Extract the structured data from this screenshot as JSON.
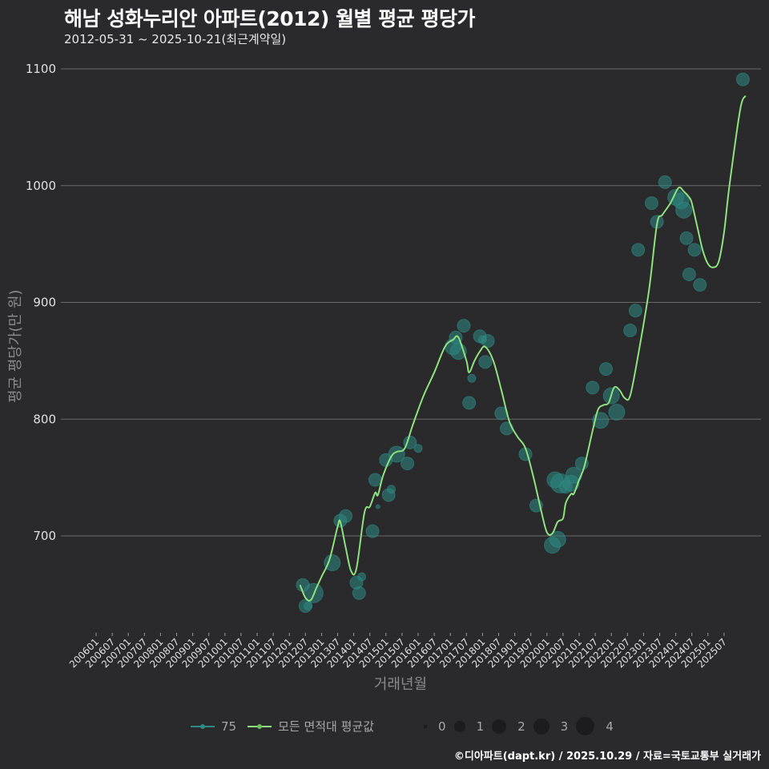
{
  "title": "해남 성화누리안 아파트(2012) 월별 평균 평당가",
  "subtitle": "2012-05-31 ~ 2025-10-21(최근계약일)",
  "footer": "©디아파트(dapt.kr) / 2025.10.29 / 자료=국토교통부 실거래가",
  "colors": {
    "background": "#2a292b",
    "grid": "#6b6b6b",
    "series_75": "#2e8b84",
    "average_line": "#8ee27f",
    "size_legend_dot": "#1c1b1d"
  },
  "legend": {
    "series": [
      {
        "label": "75",
        "color": "#2e8b84"
      },
      {
        "label": "모든 면적대 평균값",
        "color": "#8ee27f"
      }
    ],
    "sizes": [
      "0",
      "1",
      "2",
      "3",
      "4"
    ]
  },
  "chart_data": {
    "type": "line",
    "title": "해남 성화누리안 아파트(2012) 월별 평균 평당가",
    "subtitle": "2012-05-31 ~ 2025-10-21(최근계약일)",
    "xlabel": "거래년월",
    "ylabel": "평균 평당가(만 원)",
    "ylim": [
      620,
      1110
    ],
    "yticks": [
      700,
      800,
      900,
      1000,
      1100
    ],
    "grid": true,
    "legend_position": "bottom",
    "xticks": [
      "200601",
      "200607",
      "200701",
      "200707",
      "200801",
      "200807",
      "200901",
      "200907",
      "201001",
      "201007",
      "201101",
      "201107",
      "201201",
      "201207",
      "201301",
      "201307",
      "201401",
      "201407",
      "201501",
      "201507",
      "201601",
      "201607",
      "201701",
      "201707",
      "201801",
      "201807",
      "201901",
      "201907",
      "202001",
      "202007",
      "202101",
      "202107",
      "202201",
      "202207",
      "202301",
      "202307",
      "202401",
      "202407",
      "202501",
      "202507"
    ],
    "series": [
      {
        "name": "모든 면적대 평균값",
        "type": "line",
        "points": [
          [
            "2012-05",
            658
          ],
          [
            "2012-07",
            647
          ],
          [
            "2012-09",
            645
          ],
          [
            "2012-11",
            655
          ],
          [
            "2013-01",
            665
          ],
          [
            "2013-04",
            680
          ],
          [
            "2013-07",
            708
          ],
          [
            "2013-08",
            712
          ],
          [
            "2013-10",
            690
          ],
          [
            "2013-12",
            670
          ],
          [
            "2014-02",
            672
          ],
          [
            "2014-05",
            720
          ],
          [
            "2014-07",
            725
          ],
          [
            "2014-09",
            737
          ],
          [
            "2014-10",
            735
          ],
          [
            "2014-12",
            752
          ],
          [
            "2015-03",
            768
          ],
          [
            "2015-05",
            772
          ],
          [
            "2015-08",
            775
          ],
          [
            "2015-11",
            795
          ],
          [
            "2016-03",
            820
          ],
          [
            "2016-07",
            840
          ],
          [
            "2016-11",
            862
          ],
          [
            "2017-02",
            868
          ],
          [
            "2017-04",
            870
          ],
          [
            "2017-07",
            850
          ],
          [
            "2017-08",
            840
          ],
          [
            "2017-10",
            850
          ],
          [
            "2017-12",
            858
          ],
          [
            "2018-02",
            862
          ],
          [
            "2018-05",
            850
          ],
          [
            "2018-08",
            825
          ],
          [
            "2018-11",
            798
          ],
          [
            "2019-02",
            785
          ],
          [
            "2019-05",
            775
          ],
          [
            "2019-08",
            750
          ],
          [
            "2019-11",
            720
          ],
          [
            "2020-01",
            703
          ],
          [
            "2020-03",
            702
          ],
          [
            "2020-05",
            712
          ],
          [
            "2020-07",
            715
          ],
          [
            "2020-08",
            728
          ],
          [
            "2020-10",
            736
          ],
          [
            "2020-11",
            736
          ],
          [
            "2021-01",
            748
          ],
          [
            "2021-03",
            760
          ],
          [
            "2021-06",
            790
          ],
          [
            "2021-08",
            808
          ],
          [
            "2021-10",
            812
          ],
          [
            "2021-12",
            814
          ],
          [
            "2022-02",
            827
          ],
          [
            "2022-04",
            825
          ],
          [
            "2022-06",
            818
          ],
          [
            "2022-08",
            820
          ],
          [
            "2022-11",
            855
          ],
          [
            "2023-03",
            910
          ],
          [
            "2023-06",
            967
          ],
          [
            "2023-08",
            975
          ],
          [
            "2023-11",
            985
          ],
          [
            "2024-02",
            998
          ],
          [
            "2024-04",
            995
          ],
          [
            "2024-06",
            990
          ],
          [
            "2024-07",
            985
          ],
          [
            "2024-09",
            965
          ],
          [
            "2024-11",
            945
          ],
          [
            "2025-01",
            933
          ],
          [
            "2025-03",
            930
          ],
          [
            "2025-05",
            935
          ],
          [
            "2025-07",
            960
          ],
          [
            "2025-09",
            1000
          ],
          [
            "2026-01",
            1065
          ],
          [
            "2026-03",
            1077
          ]
        ]
      },
      {
        "name": "75",
        "type": "scatter",
        "points": [
          [
            "2012-06",
            658,
            2
          ],
          [
            "2012-07",
            640,
            2
          ],
          [
            "2012-08",
            640,
            1
          ],
          [
            "2012-10",
            651,
            4
          ],
          [
            "2013-05",
            677,
            3
          ],
          [
            "2013-08",
            713,
            2
          ],
          [
            "2013-10",
            717,
            2
          ],
          [
            "2014-02",
            660,
            2
          ],
          [
            "2014-03",
            651,
            2
          ],
          [
            "2014-04",
            665,
            1
          ],
          [
            "2014-08",
            704,
            2
          ],
          [
            "2014-09",
            748,
            2
          ],
          [
            "2014-10",
            725,
            0
          ],
          [
            "2015-01",
            765,
            2
          ],
          [
            "2015-02",
            735,
            2
          ],
          [
            "2015-03",
            740,
            1
          ],
          [
            "2015-05",
            770,
            3
          ],
          [
            "2015-09",
            762,
            2
          ],
          [
            "2015-10",
            780,
            2
          ],
          [
            "2016-01",
            775,
            1
          ],
          [
            "2017-02",
            862,
            3
          ],
          [
            "2017-03",
            870,
            2
          ],
          [
            "2017-04",
            858,
            3
          ],
          [
            "2017-06",
            880,
            2
          ],
          [
            "2017-08",
            814,
            2
          ],
          [
            "2017-09",
            835,
            1
          ],
          [
            "2017-12",
            871,
            2
          ],
          [
            "2018-01",
            868,
            1
          ],
          [
            "2018-02",
            849,
            2
          ],
          [
            "2018-03",
            867,
            2
          ],
          [
            "2018-08",
            805,
            2
          ],
          [
            "2018-10",
            792,
            2
          ],
          [
            "2019-05",
            770,
            2
          ],
          [
            "2019-09",
            726,
            2
          ],
          [
            "2020-03",
            692,
            3
          ],
          [
            "2020-05",
            697,
            3
          ],
          [
            "2020-04",
            748,
            3
          ],
          [
            "2020-06",
            745,
            4
          ],
          [
            "2020-08",
            742,
            2
          ],
          [
            "2020-10",
            745,
            3
          ],
          [
            "2020-11",
            752,
            3
          ],
          [
            "2021-02",
            762,
            2
          ],
          [
            "2021-06",
            827,
            2
          ],
          [
            "2021-09",
            799,
            3
          ],
          [
            "2021-11",
            843,
            2
          ],
          [
            "2022-01",
            820,
            3
          ],
          [
            "2022-03",
            806,
            3
          ],
          [
            "2022-08",
            876,
            2
          ],
          [
            "2022-10",
            893,
            2
          ],
          [
            "2022-11",
            945,
            2
          ],
          [
            "2023-04",
            985,
            2
          ],
          [
            "2023-06",
            969,
            2
          ],
          [
            "2023-09",
            1003,
            2
          ],
          [
            "2024-01",
            990,
            3
          ],
          [
            "2024-03",
            987,
            3
          ],
          [
            "2024-04",
            979,
            3
          ],
          [
            "2024-05",
            955,
            2
          ],
          [
            "2024-06",
            924,
            2
          ],
          [
            "2024-08",
            945,
            2
          ],
          [
            "2024-10",
            915,
            2
          ],
          [
            "2026-02",
            1091,
            2
          ]
        ]
      }
    ]
  }
}
